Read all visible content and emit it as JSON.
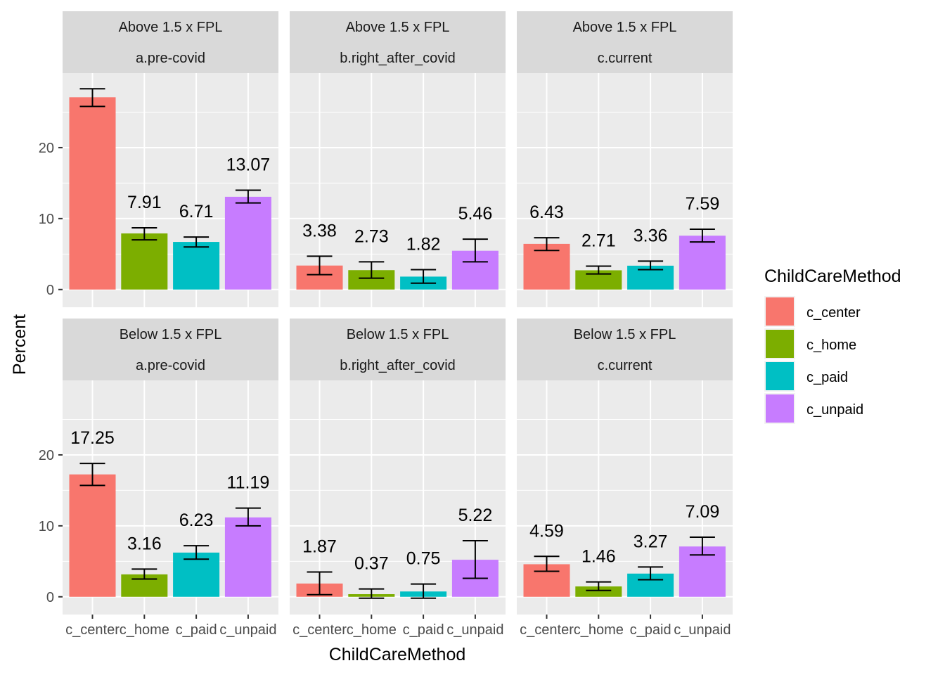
{
  "chart_data": {
    "type": "bar",
    "title": "",
    "xlabel": "ChildCareMethod",
    "ylabel": "Percent",
    "categories": [
      "c_center",
      "c_home",
      "c_paid",
      "c_unpaid"
    ],
    "ylim": [
      -2.5,
      30.5
    ],
    "yticks": [
      0,
      10,
      20
    ],
    "grid": true,
    "legend": {
      "title": "ChildCareMethod",
      "position": "right",
      "entries": [
        "c_center",
        "c_home",
        "c_paid",
        "c_unpaid"
      ]
    },
    "colors": {
      "c_center": "#F8766D",
      "c_home": "#7CAE00",
      "c_paid": "#00BFC4",
      "c_unpaid": "#C77CFF"
    },
    "panels": [
      {
        "row_strip": "Above 1.5 x FPL",
        "col_strip": "a.pre-covid",
        "values": [
          27.1,
          7.91,
          6.71,
          13.07
        ],
        "labels": [
          "",
          "7.91",
          "6.71",
          "13.07"
        ],
        "error_low": [
          25.8,
          7.0,
          6.0,
          12.2
        ],
        "error_high": [
          28.3,
          8.7,
          7.4,
          14.0
        ]
      },
      {
        "row_strip": "Above 1.5 x FPL",
        "col_strip": "b.right_after_covid",
        "values": [
          3.38,
          2.73,
          1.82,
          5.46
        ],
        "labels": [
          "3.38",
          "2.73",
          "1.82",
          "5.46"
        ],
        "error_low": [
          2.1,
          1.6,
          0.9,
          3.9
        ],
        "error_high": [
          4.7,
          3.9,
          2.8,
          7.1
        ]
      },
      {
        "row_strip": "Above 1.5 x FPL",
        "col_strip": "c.current",
        "values": [
          6.43,
          2.71,
          3.36,
          7.59
        ],
        "labels": [
          "6.43",
          "2.71",
          "3.36",
          "7.59"
        ],
        "error_low": [
          5.5,
          2.2,
          2.8,
          6.7
        ],
        "error_high": [
          7.3,
          3.3,
          4.0,
          8.5
        ]
      },
      {
        "row_strip": "Below 1.5 x FPL",
        "col_strip": "a.pre-covid",
        "values": [
          17.25,
          3.16,
          6.23,
          11.19
        ],
        "labels": [
          "17.25",
          "3.16",
          "6.23",
          "11.19"
        ],
        "error_low": [
          15.7,
          2.5,
          5.3,
          10.0
        ],
        "error_high": [
          18.8,
          3.9,
          7.2,
          12.5
        ]
      },
      {
        "row_strip": "Below 1.5 x FPL",
        "col_strip": "b.right_after_covid",
        "values": [
          1.87,
          0.37,
          0.75,
          5.22
        ],
        "labels": [
          "1.87",
          "0.37",
          "0.75",
          "5.22"
        ],
        "error_low": [
          0.3,
          -0.2,
          -0.2,
          2.6
        ],
        "error_high": [
          3.5,
          1.1,
          1.8,
          7.9
        ]
      },
      {
        "row_strip": "Below 1.5 x FPL",
        "col_strip": "c.current",
        "values": [
          4.59,
          1.46,
          3.27,
          7.09
        ],
        "labels": [
          "4.59",
          "1.46",
          "3.27",
          "7.09"
        ],
        "error_low": [
          3.6,
          0.9,
          2.4,
          5.9
        ],
        "error_high": [
          5.7,
          2.1,
          4.2,
          8.4
        ]
      }
    ]
  }
}
